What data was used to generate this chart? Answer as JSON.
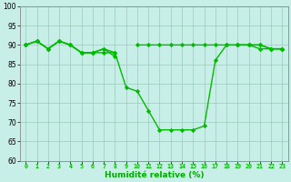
{
  "x": [
    0,
    1,
    2,
    3,
    4,
    5,
    6,
    7,
    8,
    9,
    10,
    11,
    12,
    13,
    14,
    15,
    16,
    17,
    18,
    19,
    20,
    21,
    22,
    23
  ],
  "line1": [
    90,
    91,
    89,
    91,
    90,
    88,
    88,
    89,
    88,
    null,
    90,
    90,
    90,
    90,
    90,
    90,
    90,
    90,
    90,
    90,
    90,
    90,
    89,
    89
  ],
  "line2": [
    90,
    91,
    89,
    91,
    90,
    88,
    88,
    89,
    87,
    null,
    null,
    null,
    null,
    null,
    null,
    null,
    null,
    null,
    null,
    90,
    90,
    90,
    89,
    89
  ],
  "line3": [
    90,
    91,
    89,
    91,
    90,
    88,
    88,
    88,
    88,
    79,
    78,
    73,
    68,
    68,
    68,
    68,
    69,
    86,
    90,
    90,
    90,
    89,
    89,
    89
  ],
  "xlabel": "Humidité relative (%)",
  "ylim": [
    60,
    100
  ],
  "xlim_min": -0.5,
  "xlim_max": 23.5,
  "yticks": [
    60,
    65,
    70,
    75,
    80,
    85,
    90,
    95,
    100
  ],
  "xticks": [
    0,
    1,
    2,
    3,
    4,
    5,
    6,
    7,
    8,
    9,
    10,
    11,
    12,
    13,
    14,
    15,
    16,
    17,
    18,
    19,
    20,
    21,
    22,
    23
  ],
  "line_color": "#00bb00",
  "bg_color": "#c8eee8",
  "grid_color": "#99ccbb",
  "marker": "D",
  "markersize": 2.2,
  "linewidth": 1.0,
  "xlabel_fontsize": 6.5,
  "xlabel_color": "#00aa00",
  "ytick_fontsize": 5.5,
  "xtick_fontsize": 4.8
}
